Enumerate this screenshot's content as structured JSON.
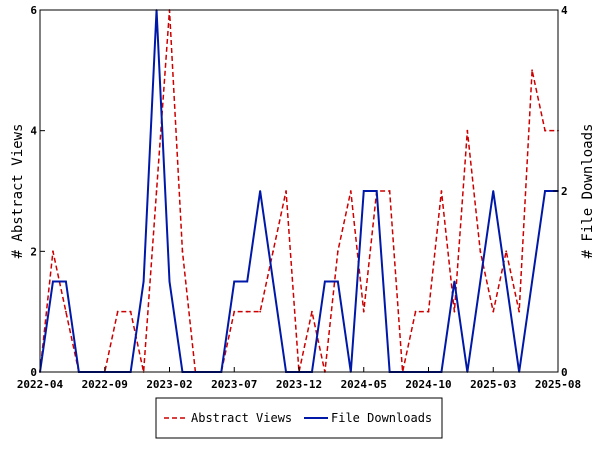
{
  "chart_data": {
    "type": "line",
    "x": [
      "2022-04",
      "2022-05",
      "2022-06",
      "2022-07",
      "2022-08",
      "2022-09",
      "2022-10",
      "2022-11",
      "2022-12",
      "2023-01",
      "2023-02",
      "2023-03",
      "2023-04",
      "2023-05",
      "2023-06",
      "2023-07",
      "2023-08",
      "2023-09",
      "2023-10",
      "2023-11",
      "2023-12",
      "2024-01",
      "2024-02",
      "2024-03",
      "2024-04",
      "2024-05",
      "2024-06",
      "2024-07",
      "2024-08",
      "2024-09",
      "2024-10",
      "2024-11",
      "2024-12",
      "2025-01",
      "2025-02",
      "2025-03",
      "2025-04",
      "2025-05",
      "2025-06",
      "2025-07",
      "2025-08"
    ],
    "x_ticks": [
      "2022-04",
      "2022-09",
      "2023-02",
      "2023-07",
      "2023-12",
      "2024-05",
      "2024-10",
      "2025-03",
      "2025-08"
    ],
    "series": [
      {
        "name": "Abstract Views",
        "axis": "left",
        "color": "#cc0000",
        "style": "dashed",
        "values": [
          0,
          2,
          1,
          0,
          0,
          0,
          1,
          1,
          0,
          3,
          6,
          2,
          0,
          0,
          0,
          1,
          1,
          1,
          2,
          3,
          0,
          1,
          0,
          2,
          3,
          1,
          3,
          3,
          0,
          1,
          1,
          3,
          1,
          4,
          2,
          1,
          2,
          1,
          5,
          4,
          4
        ]
      },
      {
        "name": "File Downloads",
        "axis": "right",
        "color": "#0018a8",
        "style": "solid",
        "values": [
          0,
          1,
          1,
          0,
          0,
          0,
          0,
          0,
          1,
          4,
          1,
          0,
          0,
          0,
          0,
          1,
          1,
          2,
          1,
          0,
          0,
          0,
          1,
          1,
          0,
          2,
          2,
          0,
          0,
          0,
          0,
          0,
          1,
          0,
          1,
          2,
          1,
          0,
          1,
          2,
          2
        ]
      }
    ],
    "ylabel_left": "# Abstract Views",
    "ylabel_right": "# File Downloads",
    "ylim_left": [
      0,
      6
    ],
    "ylim_right": [
      0,
      4
    ],
    "yticks_left": [
      0,
      2,
      4,
      6
    ],
    "yticks_right": [
      0,
      2,
      4
    ],
    "legend_position": "bottom-center",
    "grid": false
  }
}
